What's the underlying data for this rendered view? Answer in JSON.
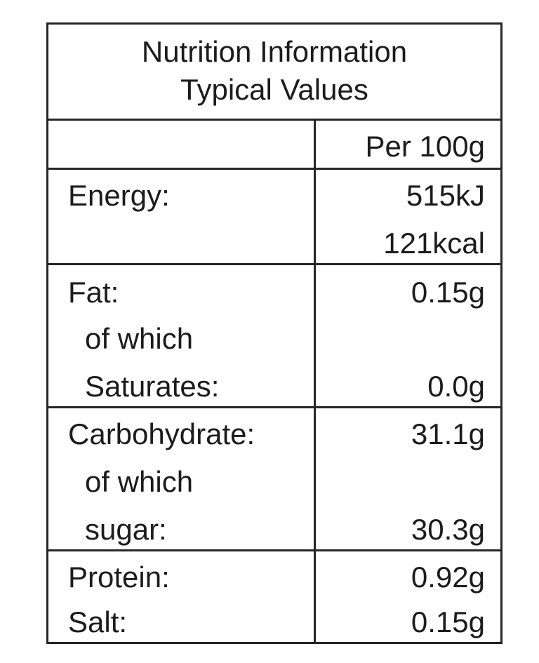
{
  "title": {
    "line1": "Nutrition Information",
    "line2": "Typical Values"
  },
  "header": {
    "label": "",
    "value": "Per 100g"
  },
  "rows": {
    "energy": {
      "label": "Energy:",
      "kj": "515kJ",
      "kcal": "121kcal"
    },
    "fat": {
      "label": "Fat:",
      "value": "0.15g"
    },
    "fat_of_which": {
      "label": "of which"
    },
    "saturates": {
      "label": "Saturates:",
      "value": "0.0g"
    },
    "carbohydrate": {
      "label": "Carbohydrate:",
      "value": "31.1g"
    },
    "carb_of_which": {
      "label": "of which"
    },
    "sugar": {
      "label": "sugar:",
      "value": "30.3g"
    },
    "protein": {
      "label": "Protein:",
      "value": "0.92g"
    },
    "salt": {
      "label": "Salt:",
      "value": "0.15g"
    }
  }
}
